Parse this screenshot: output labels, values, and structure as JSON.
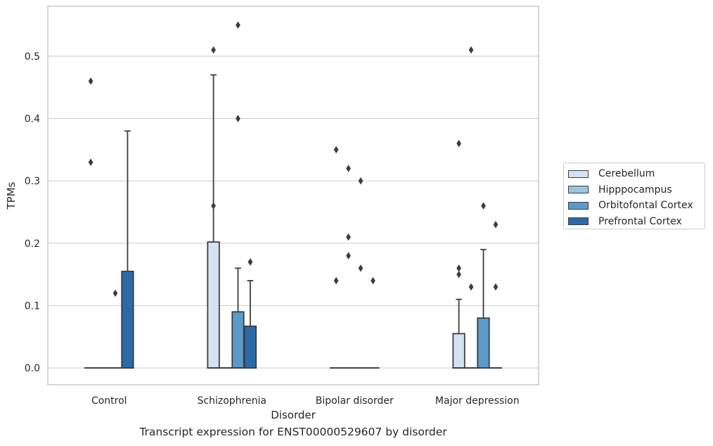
{
  "chart_data": {
    "type": "box",
    "title": "",
    "caption": "Transcript expression for ENST00000529607 by disorder",
    "xlabel": "Disorder",
    "ylabel": "TPMs",
    "ylim": [
      -0.027,
      0.58
    ],
    "yticks": [
      "0.0",
      "0.1",
      "0.2",
      "0.3",
      "0.4",
      "0.5"
    ],
    "categories": [
      "Control",
      "Schizophrenia",
      "Bipolar disorder",
      "Major depression"
    ],
    "grid": "horizontal",
    "legend_position": "right",
    "series": [
      {
        "name": "Cerebellum",
        "color": "#d4e3f3",
        "boxes": [
          {
            "q1": 0,
            "median": 0,
            "q3": 0,
            "whisker_low": 0,
            "whisker_high": 0,
            "outliers": [
              0.46,
              0.33
            ]
          },
          {
            "q1": 0,
            "median": 0,
            "q3": 0.202,
            "whisker_low": 0,
            "whisker_high": 0.47,
            "outliers": [
              0.51,
              0.26
            ]
          },
          {
            "q1": 0,
            "median": 0,
            "q3": 0,
            "whisker_low": 0,
            "whisker_high": 0,
            "outliers": [
              0.35,
              0.14
            ]
          },
          {
            "q1": 0,
            "median": 0,
            "q3": 0.055,
            "whisker_low": 0,
            "whisker_high": 0.11,
            "outliers": [
              0.36,
              0.16,
              0.15
            ]
          }
        ]
      },
      {
        "name": "Hipppocampus",
        "color": "#9bc4df",
        "boxes": [
          {
            "q1": 0,
            "median": 0,
            "q3": 0,
            "whisker_low": 0,
            "whisker_high": 0,
            "outliers": []
          },
          {
            "q1": 0,
            "median": 0,
            "q3": 0,
            "whisker_low": 0,
            "whisker_high": 0,
            "outliers": []
          },
          {
            "q1": 0,
            "median": 0,
            "q3": 0,
            "whisker_low": 0,
            "whisker_high": 0,
            "outliers": [
              0.32,
              0.21,
              0.18
            ]
          },
          {
            "q1": 0,
            "median": 0,
            "q3": 0,
            "whisker_low": 0,
            "whisker_high": 0,
            "outliers": [
              0.51,
              0.13
            ]
          }
        ]
      },
      {
        "name": "Orbitofontal Cortex",
        "color": "#5a9ac8",
        "boxes": [
          {
            "q1": 0,
            "median": 0,
            "q3": 0,
            "whisker_low": 0,
            "whisker_high": 0,
            "outliers": [
              0.12
            ]
          },
          {
            "q1": 0,
            "median": 0,
            "q3": 0.09,
            "whisker_low": 0,
            "whisker_high": 0.16,
            "outliers": [
              0.55,
              0.4
            ]
          },
          {
            "q1": 0,
            "median": 0,
            "q3": 0,
            "whisker_low": 0,
            "whisker_high": 0,
            "outliers": [
              0.3,
              0.16
            ]
          },
          {
            "q1": 0,
            "median": 0,
            "q3": 0.08,
            "whisker_low": 0,
            "whisker_high": 0.19,
            "outliers": [
              0.26
            ]
          }
        ]
      },
      {
        "name": "Prefrontal Cortex",
        "color": "#2c6aa7",
        "boxes": [
          {
            "q1": 0,
            "median": 0,
            "q3": 0.155,
            "whisker_low": 0,
            "whisker_high": 0.38,
            "outliers": []
          },
          {
            "q1": 0,
            "median": 0,
            "q3": 0.067,
            "whisker_low": 0,
            "whisker_high": 0.14,
            "outliers": [
              0.17,
              0.17
            ]
          },
          {
            "q1": 0,
            "median": 0,
            "q3": 0,
            "whisker_low": 0,
            "whisker_high": 0,
            "outliers": [
              0.14
            ]
          },
          {
            "q1": 0,
            "median": 0,
            "q3": 0,
            "whisker_low": 0,
            "whisker_high": 0,
            "outliers": [
              0.23,
              0.13
            ]
          }
        ]
      }
    ]
  }
}
